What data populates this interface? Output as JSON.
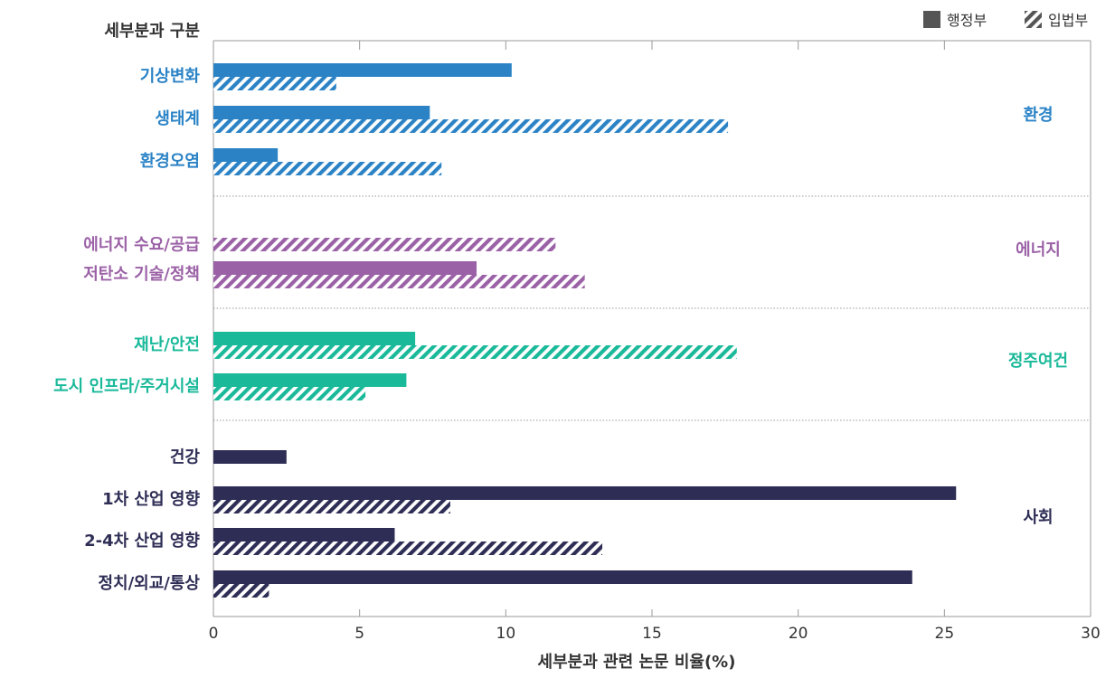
{
  "chart_data": {
    "type": "bar",
    "orientation": "horizontal",
    "header": "세부분과 구분",
    "xlabel": "세부분과 관련 논문 비율(%)",
    "xlim": [
      0,
      30
    ],
    "xticks": [
      0,
      5,
      10,
      15,
      20,
      25,
      30
    ],
    "grid": "vertical top ticks only",
    "legend_position": "top-right",
    "series": [
      {
        "name": "행정부",
        "pattern": "solid"
      },
      {
        "name": "입법부",
        "pattern": "hatched"
      }
    ],
    "groups": [
      {
        "name": "환경",
        "color": "#2b83c6",
        "categories": [
          {
            "label": "기상변화",
            "행정부": 10.2,
            "입법부": 4.2
          },
          {
            "label": "생태계",
            "행정부": 7.4,
            "입법부": 17.6
          },
          {
            "label": "환경오염",
            "행정부": 2.2,
            "입법부": 7.8
          }
        ]
      },
      {
        "name": "에너지",
        "color": "#9b61a6",
        "categories": [
          {
            "label": "에너지 수요/공급",
            "행정부": 0,
            "입법부": 11.7
          },
          {
            "label": "저탄소 기술/정책",
            "행정부": 9.0,
            "입법부": 12.7
          }
        ]
      },
      {
        "name": "정주여건",
        "color": "#1ab99a",
        "categories": [
          {
            "label": "재난/안전",
            "행정부": 6.9,
            "입법부": 17.9
          },
          {
            "label": "도시 인프라/주거시설",
            "행정부": 6.6,
            "입법부": 5.2
          }
        ]
      },
      {
        "name": "사회",
        "color": "#2e2d55",
        "categories": [
          {
            "label": "건강",
            "행정부": 2.5,
            "입법부": 0
          },
          {
            "label": "1차 산업 영향",
            "행정부": 25.4,
            "입법부": 8.1
          },
          {
            "label": "2-4차 산업 영향",
            "행정부": 6.2,
            "입법부": 13.3
          },
          {
            "label": "정치/외교/통상",
            "행정부": 23.9,
            "입법부": 1.9
          }
        ]
      }
    ],
    "legend_color": "#555555"
  }
}
